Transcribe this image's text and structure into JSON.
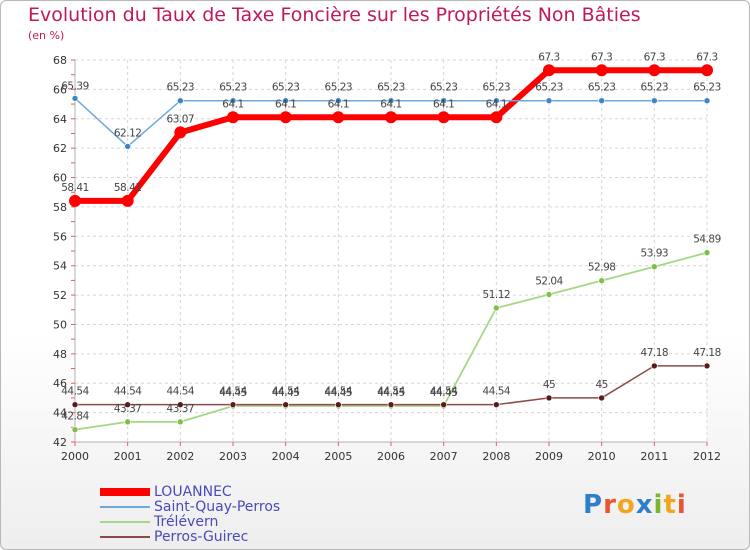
{
  "title": "Evolution du Taux de Taxe Foncière sur les Propriétés Non Bâties",
  "unit": "(en %)",
  "logo": {
    "letters": [
      "P",
      "r",
      "o",
      "x",
      "i",
      "t",
      "i"
    ],
    "colors": [
      "#2e7fc9",
      "#e8552e",
      "#f2a61f",
      "#2e7fc9",
      "#7ab62e",
      "#f2a61f",
      "#e8552e"
    ]
  },
  "chart_data": {
    "type": "line",
    "title": "Evolution du Taux de Taxe Foncière sur les Propriétés Non Bâties",
    "ylabel": "(en %)",
    "xlabel": "",
    "x": [
      "2000",
      "2001",
      "2002",
      "2003",
      "2004",
      "2005",
      "2006",
      "2007",
      "2008",
      "2009",
      "2010",
      "2011",
      "2012"
    ],
    "ylim": [
      42,
      68
    ],
    "yticks": [
      "42",
      "44",
      "46",
      "48",
      "50",
      "52",
      "54",
      "56",
      "58",
      "60",
      "62",
      "64",
      "66",
      "68"
    ],
    "grid": true,
    "legend_position": "bottom-left",
    "series": [
      {
        "name": "LOUANNEC",
        "color": "#ff0000",
        "width": 6,
        "point_color": "#ff0000",
        "values": [
          58.41,
          58.41,
          63.07,
          64.1,
          64.1,
          64.1,
          64.1,
          64.1,
          64.1,
          67.3,
          67.3,
          67.3,
          67.3
        ],
        "labels": [
          "58.41",
          "58.41",
          "63.07",
          "64.1",
          "64.1",
          "64.1",
          "64.1",
          "64.1",
          "64.1",
          "67.3",
          "67.3",
          "67.3",
          "67.3"
        ]
      },
      {
        "name": "Saint-Quay-Perros",
        "color": "#6fa8dc",
        "width": 1.5,
        "point_color": "#3d85c6",
        "values": [
          65.39,
          62.12,
          65.23,
          65.23,
          65.23,
          65.23,
          65.23,
          65.23,
          65.23,
          65.23,
          65.23,
          65.23,
          65.23
        ],
        "labels": [
          "65.39",
          "62.12",
          "65.23",
          "65.23",
          "65.23",
          "65.23",
          "65.23",
          "65.23",
          "65.23",
          "65.23",
          "65.23",
          "65.23",
          "65.23"
        ]
      },
      {
        "name": "Trélévern",
        "color": "#a6d785",
        "width": 1.8,
        "point_color": "#7cc142",
        "values": [
          42.84,
          43.37,
          43.37,
          44.45,
          44.45,
          44.45,
          44.45,
          44.45,
          51.12,
          52.04,
          52.98,
          53.93,
          54.89
        ],
        "labels": [
          "42.84",
          "43.37",
          "43.37",
          "44.45",
          "44.45",
          "44.45",
          "44.45",
          "44.45",
          "51.12",
          "52.04",
          "52.98",
          "53.93",
          "54.89"
        ]
      },
      {
        "name": "Perros-Guirec",
        "color": "#8c4a4a",
        "width": 1.5,
        "point_color": "#5c1a1a",
        "values": [
          44.54,
          44.54,
          44.54,
          44.54,
          44.54,
          44.54,
          44.54,
          44.54,
          44.54,
          45,
          45,
          47.18,
          47.18
        ],
        "labels": [
          "44.54",
          "44.54",
          "44.54",
          "44.54",
          "44.54",
          "44.54",
          "44.54",
          "44.54",
          "44.54",
          "45",
          "45",
          "47.18",
          "47.18"
        ]
      }
    ]
  }
}
